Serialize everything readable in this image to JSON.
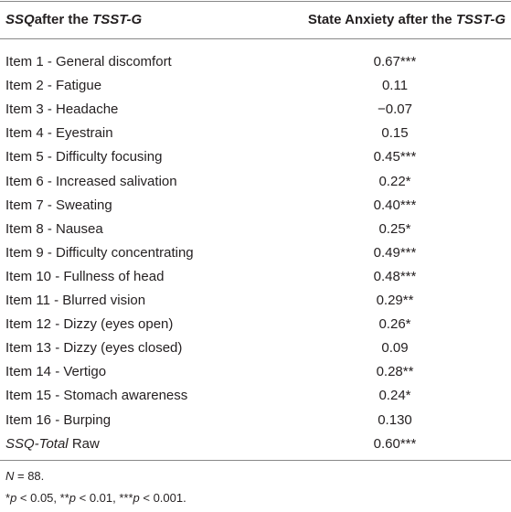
{
  "table": {
    "header": [
      [
        {
          "text": "SSQ",
          "italic": true
        },
        {
          "text": "after the "
        },
        {
          "text": "TSST-G",
          "italic": true
        }
      ],
      [
        {
          "text": "State Anxiety after the "
        },
        {
          "text": "TSST-G",
          "italic": true
        }
      ]
    ],
    "rows": [
      [
        [
          {
            "text": "Item 1 - General discomfort"
          }
        ],
        "0.67***"
      ],
      [
        [
          {
            "text": "Item 2 - Fatigue"
          }
        ],
        "0.11"
      ],
      [
        [
          {
            "text": "Item 3 - Headache"
          }
        ],
        "−0.07"
      ],
      [
        [
          {
            "text": "Item 4 - Eyestrain"
          }
        ],
        "0.15"
      ],
      [
        [
          {
            "text": "Item 5 - Difficulty focusing"
          }
        ],
        "0.45***"
      ],
      [
        [
          {
            "text": "Item 6 - Increased salivation"
          }
        ],
        "0.22*"
      ],
      [
        [
          {
            "text": "Item 7 - Sweating"
          }
        ],
        "0.40***"
      ],
      [
        [
          {
            "text": "Item 8 - Nausea"
          }
        ],
        "0.25*"
      ],
      [
        [
          {
            "text": "Item 9 - Difficulty concentrating"
          }
        ],
        "0.49***"
      ],
      [
        [
          {
            "text": "Item 10 - Fullness of head"
          }
        ],
        "0.48***"
      ],
      [
        [
          {
            "text": "Item 11 - Blurred vision"
          }
        ],
        "0.29**"
      ],
      [
        [
          {
            "text": "Item 12 - Dizzy (eyes open)"
          }
        ],
        "0.26*"
      ],
      [
        [
          {
            "text": "Item 13 - Dizzy (eyes closed)"
          }
        ],
        "0.09"
      ],
      [
        [
          {
            "text": "Item 14 - Vertigo"
          }
        ],
        "0.28**"
      ],
      [
        [
          {
            "text": "Item 15 - Stomach awareness"
          }
        ],
        "0.24*"
      ],
      [
        [
          {
            "text": "Item 16 - Burping"
          }
        ],
        "0.130"
      ],
      [
        [
          {
            "text": "SSQ-Total",
            "italic": true
          },
          {
            "text": " Raw"
          }
        ],
        "0.60***"
      ]
    ],
    "notes": [
      [
        {
          "text": "N",
          "italic": true
        },
        {
          "text": " = 88."
        }
      ],
      [
        {
          "text": "*"
        },
        {
          "text": "p",
          "italic": true
        },
        {
          "text": " < 0.05, **"
        },
        {
          "text": "p",
          "italic": true
        },
        {
          "text": " < 0.01, ***"
        },
        {
          "text": "p",
          "italic": true
        },
        {
          "text": " < 0.001."
        }
      ]
    ]
  }
}
